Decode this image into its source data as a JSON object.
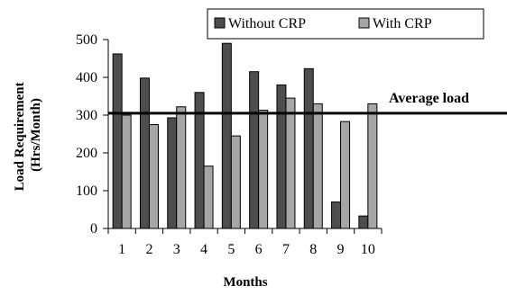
{
  "chart_data": {
    "type": "bar",
    "categories": [
      "1",
      "2",
      "3",
      "4",
      "5",
      "6",
      "7",
      "8",
      "9",
      "10"
    ],
    "series": [
      {
        "name": "Without CRP",
        "color": "#4d4d4d",
        "values": [
          462,
          398,
          293,
          360,
          490,
          415,
          380,
          423,
          70,
          33
        ]
      },
      {
        "name": "With CRP",
        "color": "#a6a6a6",
        "values": [
          300,
          275,
          322,
          165,
          245,
          313,
          345,
          330,
          283,
          330
        ]
      }
    ],
    "xlabel": "Months",
    "ylabel_lines": [
      "Load Requirement",
      "(Hrs/Month)"
    ],
    "yticks": [
      "0",
      "100",
      "200",
      "300",
      "400",
      "500"
    ],
    "ylim": [
      0,
      500
    ],
    "grid": false,
    "legend_position": "top-right",
    "reference_line": {
      "label": "Average load",
      "value": 305
    }
  }
}
